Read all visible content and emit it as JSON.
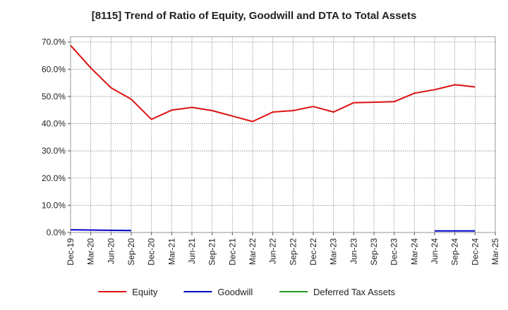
{
  "chart_data": {
    "type": "line",
    "title": "[8115]  Trend of Ratio of Equity, Goodwill and DTA to Total Assets",
    "xlabel": "",
    "ylabel": "",
    "ylim": [
      0,
      72
    ],
    "y_ticks": [
      0,
      10,
      20,
      30,
      40,
      50,
      60,
      70
    ],
    "y_tick_labels": [
      "0.0%",
      "10.0%",
      "20.0%",
      "30.0%",
      "40.0%",
      "50.0%",
      "60.0%",
      "70.0%"
    ],
    "x_tick_labels": [
      "Dec-19",
      "Mar-20",
      "Jun-20",
      "Sep-20",
      "Dec-20",
      "Mar-21",
      "Jun-21",
      "Sep-21",
      "Dec-21",
      "Mar-22",
      "Jun-22",
      "Sep-22",
      "Dec-22",
      "Mar-23",
      "Jun-23",
      "Sep-23",
      "Dec-23",
      "Mar-24",
      "Jun-24",
      "Sep-24",
      "Dec-24",
      "Mar-25"
    ],
    "grid": true,
    "legend_position": "bottom",
    "series": [
      {
        "name": "Equity",
        "color": "#dd1111",
        "values": [
          68.8,
          60.5,
          53.2,
          49.0,
          41.6,
          45.0,
          46.0,
          44.8,
          42.8,
          40.8,
          44.3,
          44.8,
          46.3,
          44.3,
          47.7,
          47.9,
          48.1,
          51.2,
          52.5,
          54.3,
          53.5,
          null
        ]
      },
      {
        "name": "Goodwill",
        "color": "#0000cc",
        "values": [
          1.0,
          0.9,
          0.8,
          0.7,
          null,
          null,
          null,
          null,
          null,
          null,
          null,
          null,
          null,
          null,
          null,
          null,
          null,
          null,
          0.6,
          0.6,
          0.6,
          null
        ]
      },
      {
        "name": "Deferred Tax Assets",
        "color": "#229922",
        "values": [
          null,
          null,
          null,
          null,
          null,
          null,
          null,
          null,
          null,
          null,
          null,
          null,
          null,
          null,
          null,
          null,
          null,
          null,
          null,
          null,
          null,
          null
        ]
      }
    ]
  }
}
